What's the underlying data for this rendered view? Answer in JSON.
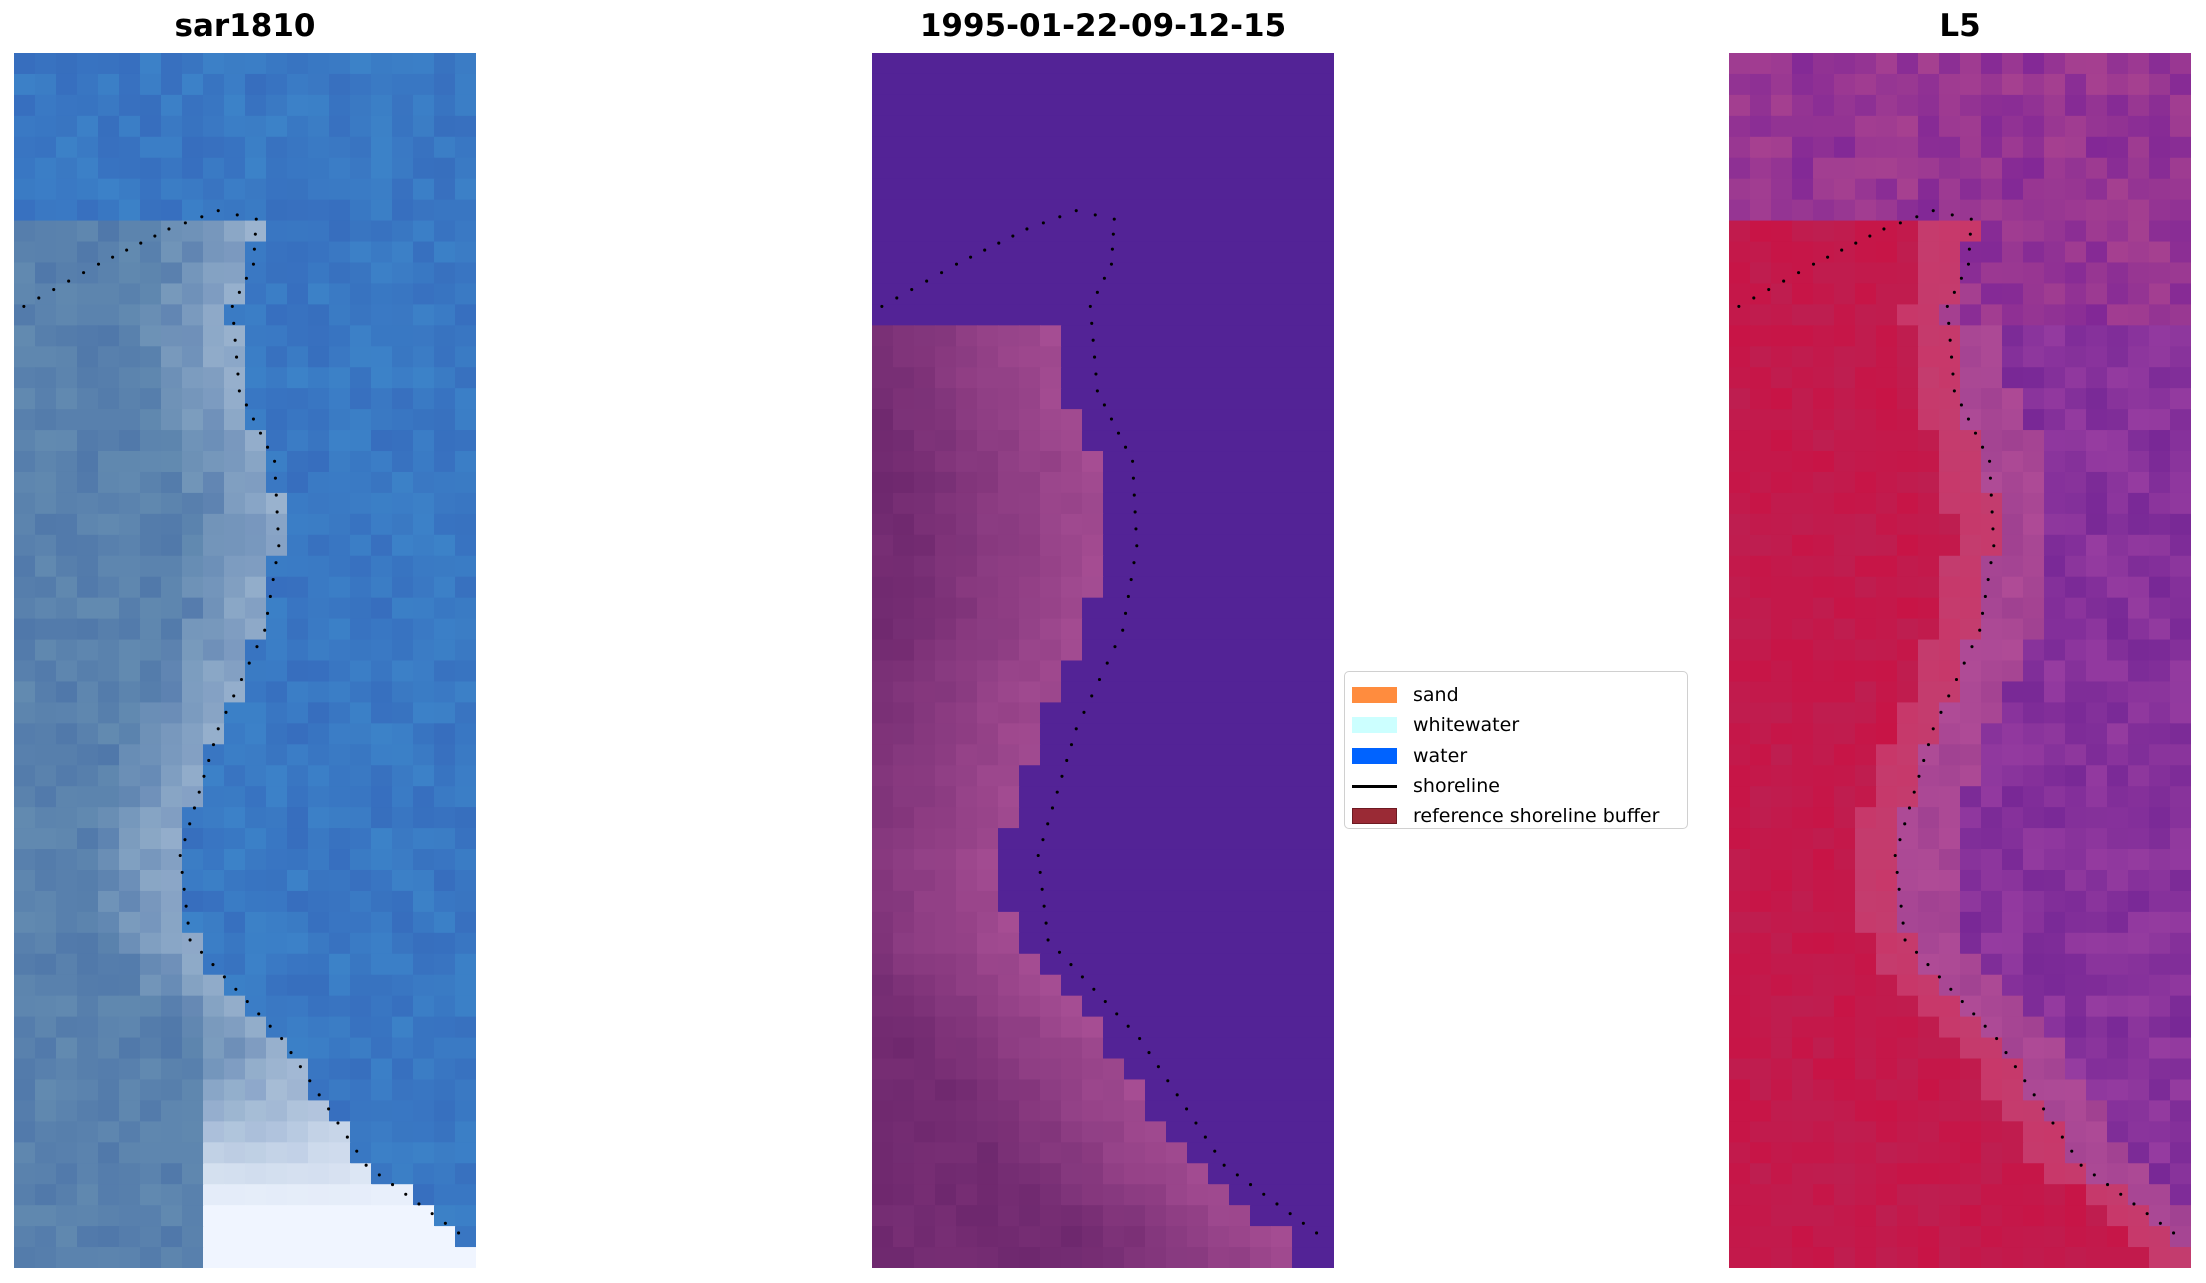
{
  "panels": [
    {
      "title": "sar1810",
      "style": "rgb"
    },
    {
      "title": "1995-01-22-09-12-15",
      "style": "classified"
    },
    {
      "title": "L5",
      "style": "index"
    }
  ],
  "legend": {
    "items": [
      {
        "label": "sand",
        "color": "#ff8c3e",
        "kind": "patch"
      },
      {
        "label": "whitewater",
        "color": "#ccffff",
        "kind": "patch"
      },
      {
        "label": "water",
        "color": "#0063ff",
        "kind": "patch"
      },
      {
        "label": "shoreline",
        "color": "#000000",
        "kind": "line"
      },
      {
        "label": "reference shoreline buffer",
        "color": "#9a2a35",
        "kind": "patch"
      }
    ]
  }
}
